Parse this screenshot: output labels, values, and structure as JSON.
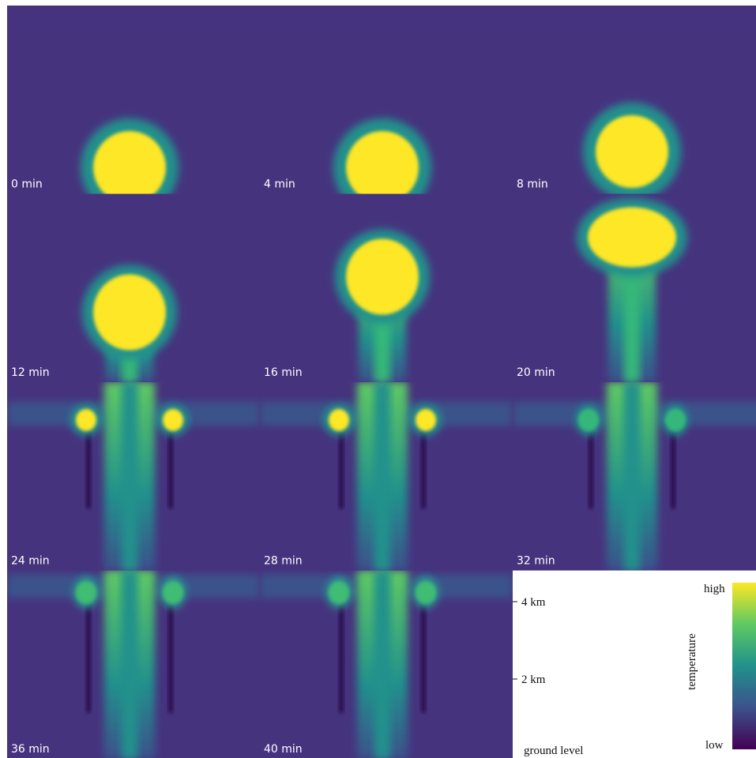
{
  "panels": [
    {
      "label": "0 min"
    },
    {
      "label": "4 min"
    },
    {
      "label": "8 min"
    },
    {
      "label": "12 min"
    },
    {
      "label": "16 min"
    },
    {
      "label": "20 min"
    },
    {
      "label": "24 min"
    },
    {
      "label": "28 min"
    },
    {
      "label": "32 min"
    },
    {
      "label": "36 min"
    },
    {
      "label": "40 min"
    }
  ],
  "height_axis": {
    "ticks": [
      "4 km",
      "2 km"
    ],
    "base": "ground level"
  },
  "colorbar": {
    "title": "temperature",
    "high": "high",
    "low": "low"
  }
}
